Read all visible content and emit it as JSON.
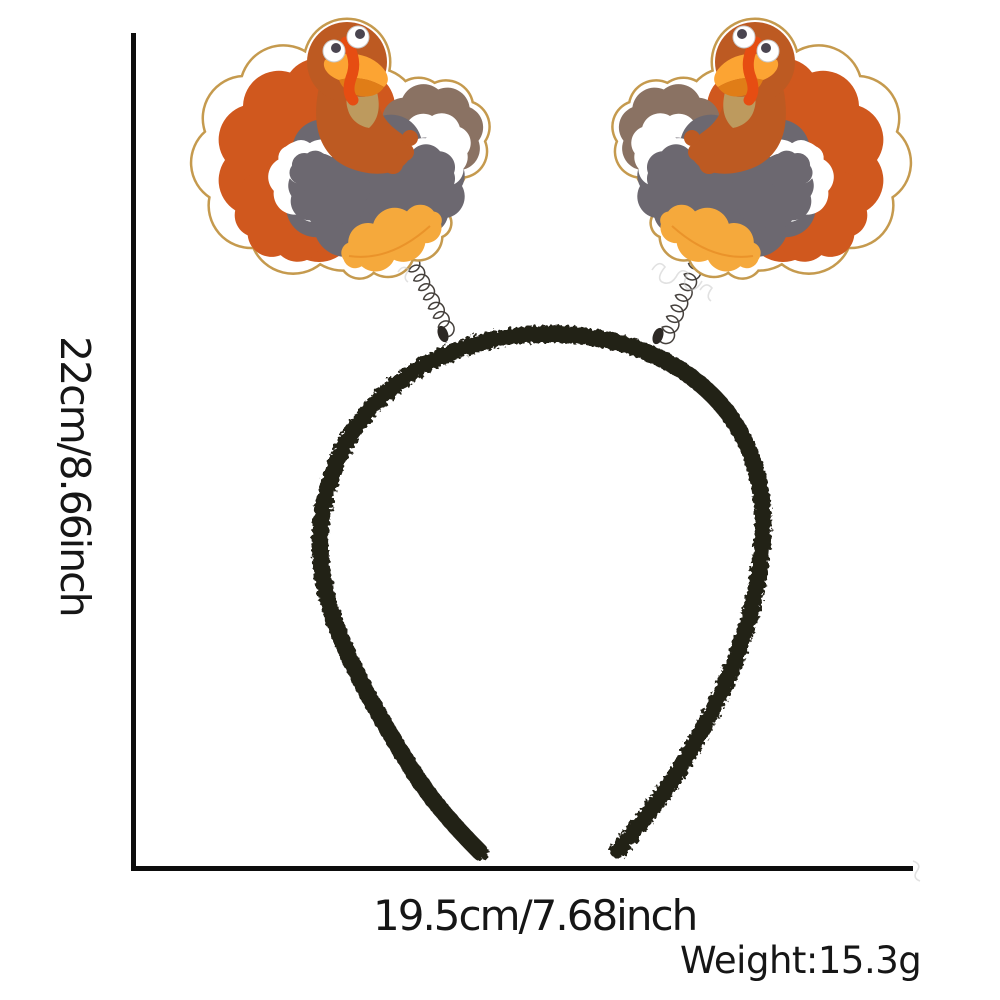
{
  "annotations": {
    "height_label": "22cm/8.66inch",
    "width_label": "19.5cm/7.68inch",
    "weight_label": "Weight:15.3g"
  },
  "colors": {
    "background": "#ffffff",
    "dimension_line": "#0d0d0d",
    "label_text": "#161616",
    "band_black": "#242019",
    "spring_metal": "#45403c",
    "clip_dark": "#2c2824",
    "outline_tan": "#c59a4e",
    "felt_white": "#ffffff",
    "rust": "#bd5a22",
    "fan_orange": "#d0581e",
    "wing_brown": "#8a7263",
    "body_gray": "#6c6870",
    "foot_orange": "#f5a93c",
    "beak_orange": "#fca433",
    "beak_shadow": "#e07d17",
    "wattle_red": "#e64d12",
    "neck_tan": "#bd9a5e",
    "eye_white": "#ffffff",
    "eye_pupil": "#4a4550",
    "watermark": "#c9c9c9"
  }
}
